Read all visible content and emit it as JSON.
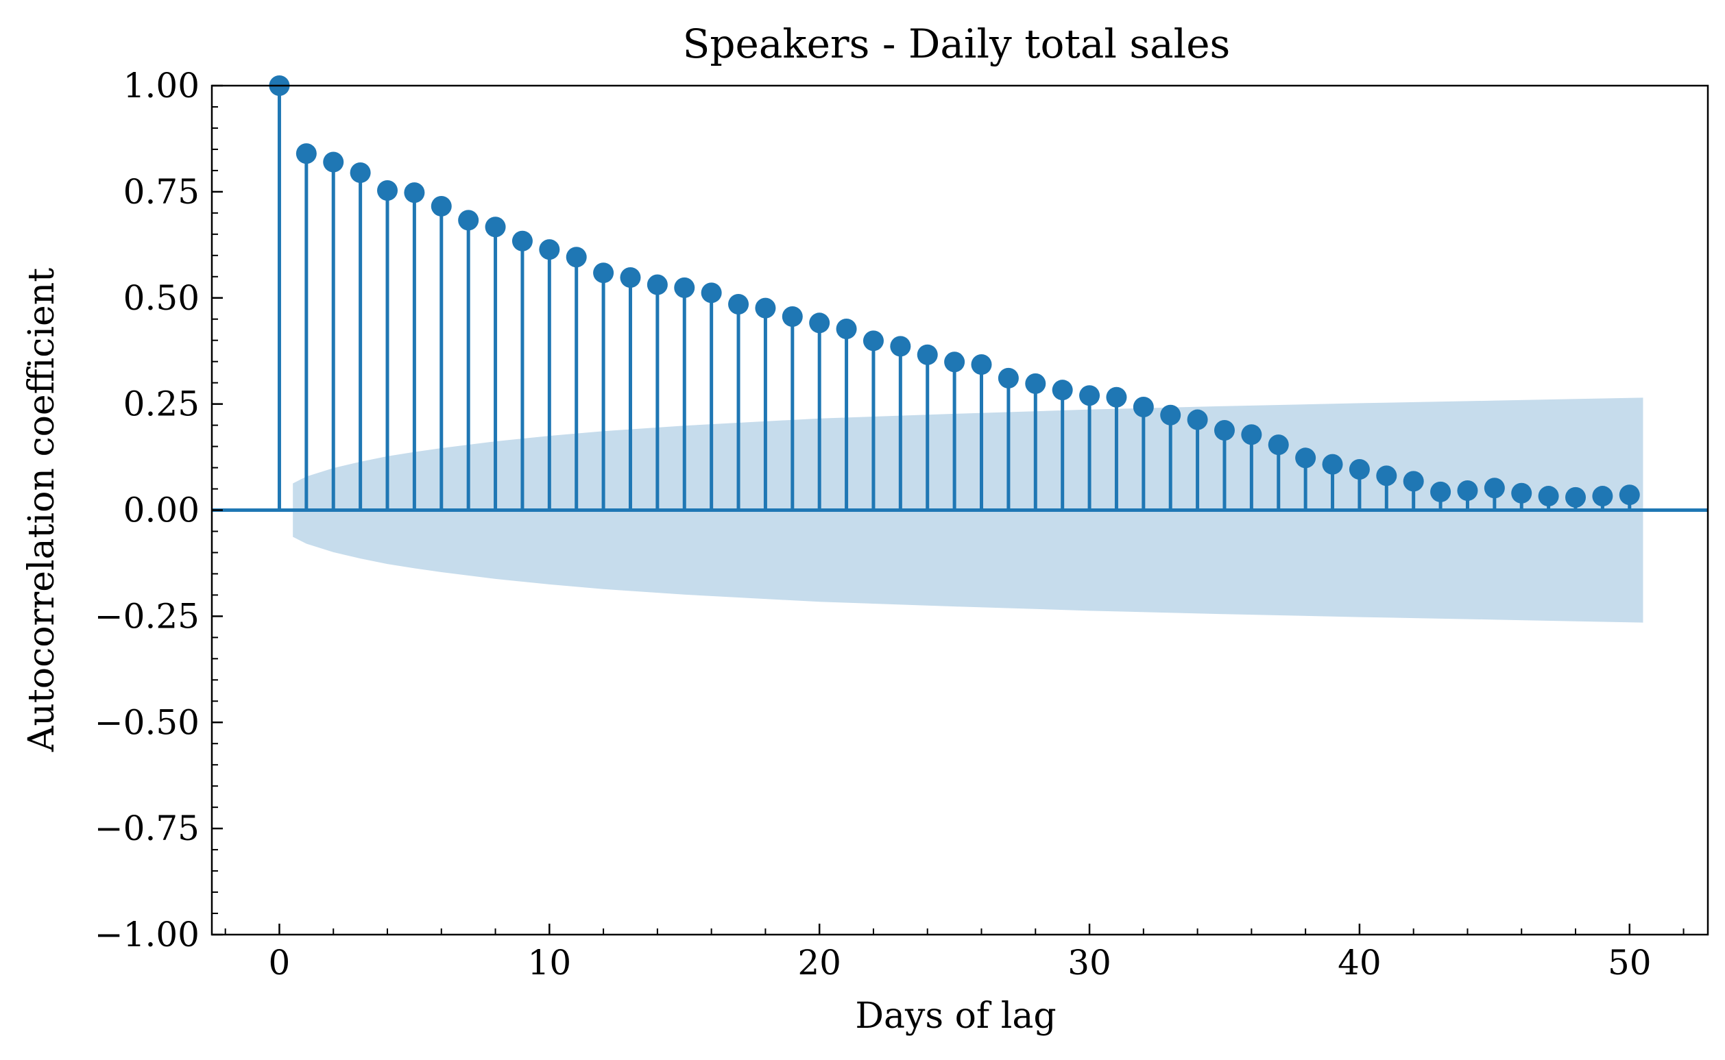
{
  "chart_data": {
    "type": "stem",
    "title": "Speakers - Daily total sales",
    "xlabel": "Days of lag",
    "ylabel": "Autocorrelation coefficient",
    "xlim": [
      -2.5,
      52.9
    ],
    "ylim": [
      -1.0,
      1.0
    ],
    "x_ticks": [
      0,
      10,
      20,
      30,
      40,
      50
    ],
    "x_tick_labels": [
      "0",
      "10",
      "20",
      "30",
      "40",
      "50"
    ],
    "y_ticks": [
      1.0,
      0.75,
      0.5,
      0.25,
      0.0,
      -0.25,
      -0.5,
      -0.75,
      -1.0
    ],
    "y_tick_labels": [
      "1.00",
      "0.75",
      "0.50",
      "0.25",
      "0.00",
      "−0.25",
      "−0.50",
      "−0.75",
      "−1.00"
    ],
    "colors": {
      "series": "#1f77b4",
      "band": "#c6dcec"
    },
    "series": [
      {
        "lags": [
          0,
          1,
          2,
          3,
          4,
          5,
          6,
          7,
          8,
          9,
          10,
          11,
          12,
          13,
          14,
          15,
          16,
          17,
          18,
          19,
          20,
          21,
          22,
          23,
          24,
          25,
          26,
          27,
          28,
          29,
          30,
          31,
          32,
          33,
          34,
          35,
          36,
          37,
          38,
          39,
          40,
          41,
          42,
          43,
          44,
          45,
          46,
          47,
          48,
          49,
          50
        ],
        "values": [
          1.0,
          0.84,
          0.82,
          0.795,
          0.753,
          0.748,
          0.716,
          0.683,
          0.667,
          0.634,
          0.614,
          0.596,
          0.559,
          0.548,
          0.531,
          0.524,
          0.512,
          0.485,
          0.476,
          0.456,
          0.441,
          0.427,
          0.399,
          0.386,
          0.366,
          0.349,
          0.343,
          0.311,
          0.298,
          0.283,
          0.27,
          0.266,
          0.243,
          0.224,
          0.213,
          0.188,
          0.178,
          0.154,
          0.123,
          0.108,
          0.096,
          0.081,
          0.068,
          0.043,
          0.046,
          0.052,
          0.04,
          0.033,
          0.03,
          0.033,
          0.036
        ]
      }
    ],
    "confidence_band": {
      "x": [
        0.5,
        1,
        2,
        3,
        4,
        5,
        6,
        8,
        10,
        12,
        15,
        20,
        25,
        30,
        35,
        40,
        45,
        50.5
      ],
      "upper": [
        0.063,
        0.079,
        0.099,
        0.114,
        0.127,
        0.137,
        0.146,
        0.162,
        0.175,
        0.186,
        0.199,
        0.216,
        0.227,
        0.237,
        0.245,
        0.252,
        0.258,
        0.265
      ],
      "lower": [
        -0.063,
        -0.079,
        -0.099,
        -0.114,
        -0.127,
        -0.137,
        -0.146,
        -0.162,
        -0.175,
        -0.186,
        -0.199,
        -0.216,
        -0.227,
        -0.237,
        -0.245,
        -0.252,
        -0.258,
        -0.265
      ]
    }
  }
}
